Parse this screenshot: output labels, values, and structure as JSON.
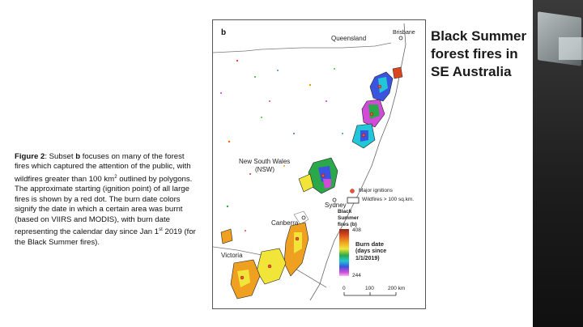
{
  "slide": {
    "title": "Black Summer forest fires in SE Australia",
    "caption": {
      "lead": "Figure 2",
      "text1": ": Subset ",
      "bold_b": "b",
      "text2": " focuses on many of the forest fires which captured the attention of the public, with wildfires greater than 100 km",
      "sup2": "2",
      "text3": " outlined by polygons. The approximate starting (ignition point) of all large fires is shown by a red dot. The burn date colors signify the date in which a certain area was burnt (based on VIIRS and MODIS), with burn date representing the calendar day since Jan 1",
      "sup_st": "st",
      "text4": " 2019 (for the Black Summer fires)."
    }
  },
  "map": {
    "panel_letter": "b",
    "labels": {
      "queensland": "Queensland",
      "brisbane": "Brisbane",
      "nsw": "New South Wales",
      "nsw_abbr": "(NSW)",
      "sydney": "Sydney",
      "canberra": "Canberra",
      "victoria": "Victoria"
    },
    "legend": {
      "ignitions": "Major ignitions",
      "wildfires": "Wildfires > 100 sq.km.",
      "colorbar_title_1": "Black",
      "colorbar_title_2": "Summer",
      "colorbar_title_3": "fires (b)",
      "max": "408",
      "min": "244",
      "burn_date_1": "Burn date",
      "burn_date_2": "(days since",
      "burn_date_3": "1/1/2019)"
    },
    "scale": {
      "t0": "0",
      "t1": "100",
      "t2": "200 km"
    }
  }
}
